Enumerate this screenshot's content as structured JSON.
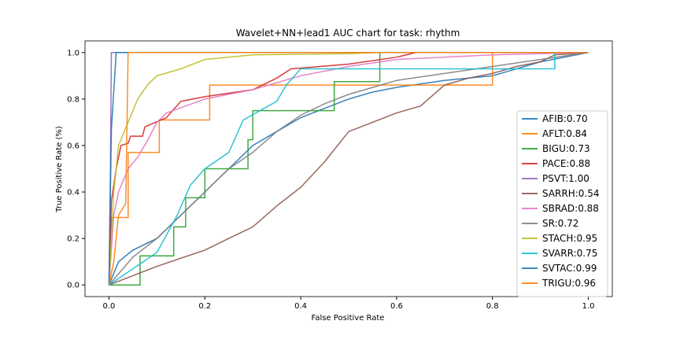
{
  "chart_data": {
    "type": "line",
    "title": "Wavelet+NN+lead1 AUC chart for task: rhythm",
    "xlabel": "False Positive Rate",
    "ylabel": "True Positive Rate (%)",
    "xlim": [
      -0.05,
      1.05
    ],
    "ylim": [
      -0.05,
      1.05
    ],
    "xticks": [
      "0.0",
      "0.2",
      "0.4",
      "0.6",
      "0.8",
      "1.0"
    ],
    "yticks": [
      "0.0",
      "0.2",
      "0.4",
      "0.6",
      "0.8",
      "1.0"
    ],
    "grid": false,
    "legend_position": "lower right",
    "series": [
      {
        "name": "AFIB:0.70",
        "color": "#1f77b4",
        "points": [
          [
            0,
            0
          ],
          [
            0.01,
            0.05
          ],
          [
            0.02,
            0.1
          ],
          [
            0.05,
            0.15
          ],
          [
            0.1,
            0.2
          ],
          [
            0.15,
            0.3
          ],
          [
            0.2,
            0.4
          ],
          [
            0.25,
            0.5
          ],
          [
            0.3,
            0.6
          ],
          [
            0.35,
            0.66
          ],
          [
            0.4,
            0.72
          ],
          [
            0.45,
            0.76
          ],
          [
            0.5,
            0.8
          ],
          [
            0.55,
            0.83
          ],
          [
            0.6,
            0.85
          ],
          [
            0.7,
            0.88
          ],
          [
            0.8,
            0.9
          ],
          [
            0.9,
            0.96
          ],
          [
            1,
            1
          ]
        ]
      },
      {
        "name": "AFLT:0.84",
        "color": "#ff7f0e",
        "points": [
          [
            0,
            0
          ],
          [
            0.005,
            0.29
          ],
          [
            0.04,
            0.29
          ],
          [
            0.04,
            0.57
          ],
          [
            0.105,
            0.57
          ],
          [
            0.105,
            0.71
          ],
          [
            0.21,
            0.71
          ],
          [
            0.21,
            0.86
          ],
          [
            0.8,
            0.86
          ],
          [
            0.8,
            1
          ],
          [
            1,
            1
          ]
        ]
      },
      {
        "name": "BIGU:0.73",
        "color": "#2ca02c",
        "points": [
          [
            0,
            0
          ],
          [
            0.065,
            0
          ],
          [
            0.065,
            0.125
          ],
          [
            0.135,
            0.125
          ],
          [
            0.135,
            0.25
          ],
          [
            0.16,
            0.25
          ],
          [
            0.16,
            0.375
          ],
          [
            0.2,
            0.375
          ],
          [
            0.2,
            0.5
          ],
          [
            0.29,
            0.5
          ],
          [
            0.29,
            0.625
          ],
          [
            0.3,
            0.625
          ],
          [
            0.3,
            0.75
          ],
          [
            0.47,
            0.75
          ],
          [
            0.47,
            0.875
          ],
          [
            0.565,
            0.875
          ],
          [
            0.565,
            1
          ],
          [
            1,
            1
          ]
        ]
      },
      {
        "name": "PACE:0.88",
        "color": "#d62728",
        "points": [
          [
            0,
            0
          ],
          [
            0.005,
            0.36
          ],
          [
            0.015,
            0.5
          ],
          [
            0.025,
            0.6
          ],
          [
            0.04,
            0.61
          ],
          [
            0.045,
            0.64
          ],
          [
            0.07,
            0.64
          ],
          [
            0.075,
            0.68
          ],
          [
            0.12,
            0.72
          ],
          [
            0.15,
            0.79
          ],
          [
            0.2,
            0.81
          ],
          [
            0.3,
            0.84
          ],
          [
            0.35,
            0.89
          ],
          [
            0.38,
            0.93
          ],
          [
            0.5,
            0.95
          ],
          [
            0.6,
            0.98
          ],
          [
            0.64,
            1
          ],
          [
            1,
            1
          ]
        ]
      },
      {
        "name": "PSVT:1.00",
        "color": "#9467bd",
        "points": [
          [
            0,
            0
          ],
          [
            0.003,
            0.5
          ],
          [
            0.005,
            1
          ],
          [
            1,
            1
          ]
        ]
      },
      {
        "name": "SARRH:0.54",
        "color": "#8c564b",
        "points": [
          [
            0,
            0
          ],
          [
            0.1,
            0.08
          ],
          [
            0.2,
            0.15
          ],
          [
            0.25,
            0.2
          ],
          [
            0.3,
            0.25
          ],
          [
            0.35,
            0.34
          ],
          [
            0.4,
            0.42
          ],
          [
            0.45,
            0.53
          ],
          [
            0.5,
            0.66
          ],
          [
            0.55,
            0.7
          ],
          [
            0.6,
            0.74
          ],
          [
            0.65,
            0.77
          ],
          [
            0.7,
            0.86
          ],
          [
            0.75,
            0.89
          ],
          [
            0.8,
            0.91
          ],
          [
            0.85,
            0.94
          ],
          [
            0.9,
            0.96
          ],
          [
            0.93,
            0.99
          ],
          [
            1,
            1
          ]
        ]
      },
      {
        "name": "SBRAD:0.88",
        "color": "#e377c2",
        "points": [
          [
            0,
            0
          ],
          [
            0.01,
            0.3
          ],
          [
            0.02,
            0.4
          ],
          [
            0.04,
            0.5
          ],
          [
            0.06,
            0.55
          ],
          [
            0.08,
            0.62
          ],
          [
            0.1,
            0.7
          ],
          [
            0.12,
            0.74
          ],
          [
            0.2,
            0.8
          ],
          [
            0.3,
            0.84
          ],
          [
            0.4,
            0.9
          ],
          [
            0.5,
            0.94
          ],
          [
            0.6,
            0.97
          ],
          [
            0.8,
            0.99
          ],
          [
            1,
            1
          ]
        ]
      },
      {
        "name": "SR:0.72",
        "color": "#7f7f7f",
        "points": [
          [
            0,
            0
          ],
          [
            0.05,
            0.12
          ],
          [
            0.1,
            0.2
          ],
          [
            0.15,
            0.3
          ],
          [
            0.2,
            0.4
          ],
          [
            0.25,
            0.5
          ],
          [
            0.3,
            0.57
          ],
          [
            0.35,
            0.66
          ],
          [
            0.4,
            0.73
          ],
          [
            0.45,
            0.78
          ],
          [
            0.5,
            0.82
          ],
          [
            0.55,
            0.85
          ],
          [
            0.6,
            0.88
          ],
          [
            0.7,
            0.91
          ],
          [
            0.8,
            0.94
          ],
          [
            0.9,
            0.97
          ],
          [
            1,
            1
          ]
        ]
      },
      {
        "name": "STACH:0.95",
        "color": "#bcbd22",
        "points": [
          [
            0,
            0
          ],
          [
            0.01,
            0.4
          ],
          [
            0.02,
            0.6
          ],
          [
            0.04,
            0.7
          ],
          [
            0.06,
            0.8
          ],
          [
            0.08,
            0.86
          ],
          [
            0.1,
            0.9
          ],
          [
            0.15,
            0.93
          ],
          [
            0.2,
            0.97
          ],
          [
            0.3,
            0.99
          ],
          [
            0.5,
            0.995
          ],
          [
            0.56,
            1
          ],
          [
            1,
            1
          ]
        ]
      },
      {
        "name": "SVARR:0.75",
        "color": "#17becf",
        "points": [
          [
            0,
            0
          ],
          [
            0.1,
            0.14
          ],
          [
            0.14,
            0.29
          ],
          [
            0.17,
            0.43
          ],
          [
            0.2,
            0.5
          ],
          [
            0.25,
            0.57
          ],
          [
            0.28,
            0.71
          ],
          [
            0.35,
            0.79
          ],
          [
            0.37,
            0.86
          ],
          [
            0.4,
            0.93
          ],
          [
            0.93,
            0.93
          ],
          [
            0.93,
            1
          ],
          [
            1,
            1
          ]
        ]
      },
      {
        "name": "SVTAC:0.99",
        "color": "#1f77b4",
        "points": [
          [
            0,
            0
          ],
          [
            0.005,
            0.667
          ],
          [
            0.015,
            1
          ],
          [
            1,
            1
          ]
        ]
      },
      {
        "name": "TRIGU:0.96",
        "color": "#ff7f0e",
        "points": [
          [
            0,
            0
          ],
          [
            0.01,
            0.1
          ],
          [
            0.02,
            0.3
          ],
          [
            0.035,
            0.35
          ],
          [
            0.04,
            1
          ],
          [
            1,
            1
          ]
        ]
      }
    ]
  }
}
